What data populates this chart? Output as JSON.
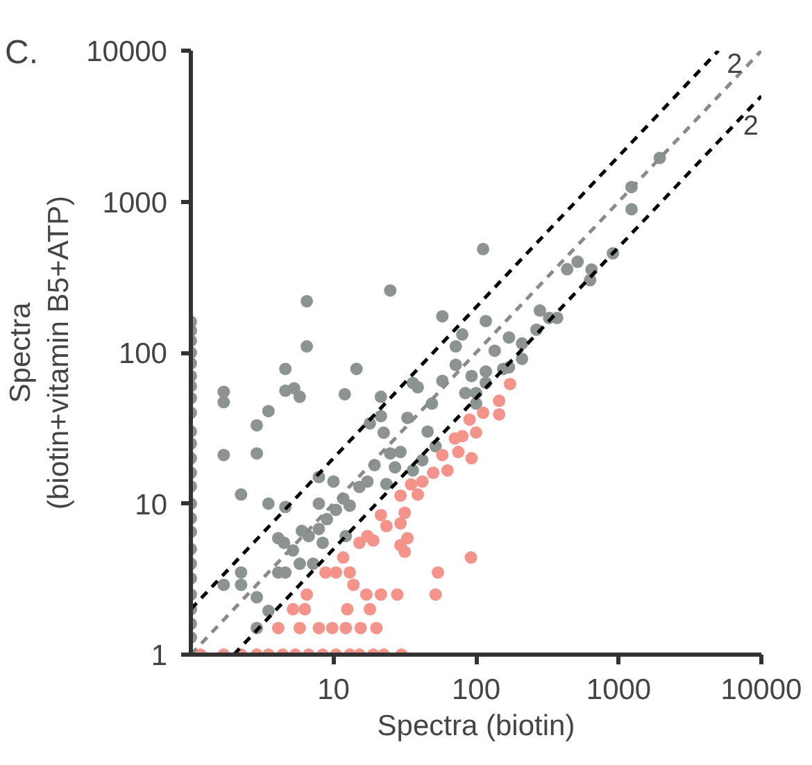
{
  "chart_data": {
    "type": "scatter",
    "title": "C.",
    "xlabel": "Spectra (biotin)",
    "ylabel": "Spectra\n(biotin+vitamin B5+ATP)",
    "log": "xy",
    "grid": false,
    "xlim": [
      1,
      10000
    ],
    "ylim": [
      1,
      10000
    ],
    "xticks": [
      10,
      100,
      1000,
      10000
    ],
    "yticks": [
      1,
      10,
      100,
      1000,
      10000
    ],
    "annotations": [
      "2",
      "2"
    ],
    "series": [
      {
        "marker": "circle",
        "color": "#8c9491",
        "x": [
          112,
          25,
          6.5,
          6.5,
          58,
          117,
          4.6,
          4.6,
          5.3,
          5.8,
          14.5,
          12,
          1.7,
          1.7,
          3.5,
          2.9,
          1.7,
          2.9,
          2.25,
          3.5,
          4.6,
          7.9,
          7.9,
          10,
          4.1,
          4.5,
          5.2,
          6,
          6.7,
          7.9,
          9,
          10.4,
          11.7,
          13,
          12.2,
          8.4,
          4.1,
          4.6,
          5.8,
          7.2,
          2.25,
          2.25,
          1.7,
          2.9,
          3.5,
          2.9,
          17.3,
          15.2,
          21.5,
          21.5,
          18,
          22.5,
          19.4,
          25,
          29.5,
          27,
          33,
          36,
          39,
          45.7,
          49,
          58,
          72,
          72,
          80,
          93,
          117,
          117,
          100,
          84,
          100,
          36,
          42,
          52,
          135,
          210,
          155,
          170,
          23.5,
          1940,
          1230,
          1230,
          910,
          645,
          630,
          515,
          435,
          325,
          370,
          280,
          265,
          210,
          170,
          1,
          1,
          1,
          1,
          1,
          1,
          1,
          1,
          1,
          1,
          1,
          1,
          1,
          1,
          1,
          1,
          1,
          1,
          1,
          1,
          1,
          1,
          1,
          1
        ],
        "values": [
          485,
          258,
          219,
          110,
          174,
          162,
          78,
          56,
          58,
          51,
          78,
          53,
          55,
          47,
          41,
          33,
          21,
          21.5,
          11.5,
          10,
          9.5,
          15,
          10,
          14,
          5.9,
          5.5,
          4.9,
          6.6,
          6.1,
          6.8,
          7.9,
          9.1,
          10.8,
          9.7,
          6.1,
          5.5,
          3.5,
          3.5,
          4,
          4,
          3.5,
          2.9,
          2.9,
          2.4,
          1.95,
          1.5,
          14,
          12.9,
          51,
          38,
          34,
          29.5,
          18,
          21.5,
          22,
          17.4,
          37,
          63,
          59,
          30,
          46,
          65,
          83,
          110,
          132,
          70,
          75,
          63,
          54,
          54,
          46,
          16.6,
          19.4,
          24,
          103,
          115,
          78,
          126,
          13.5,
          1950,
          1250,
          890,
          455,
          355,
          302,
          400,
          357,
          170,
          170,
          190,
          142,
          91,
          80,
          160,
          140,
          120,
          100,
          85,
          70,
          60,
          50,
          40,
          30,
          25,
          20,
          16,
          13,
          10,
          8,
          6.5,
          5,
          4,
          3.2,
          2.5,
          2,
          1.6,
          1.3
        ]
      },
      {
        "marker": "circle",
        "color": "#f4938a",
        "x": [
          173,
          145,
          145,
          112,
          90,
          100,
          80,
          71,
          75,
          58,
          93,
          63,
          50,
          42,
          35,
          39,
          29.5,
          31.6,
          29.5,
          21.5,
          23.5,
          17.3,
          15.2,
          19,
          33,
          31.6,
          29.5,
          11.7,
          10.4,
          8.8,
          13,
          13.8,
          54,
          52,
          92,
          6.5,
          17,
          21.5,
          28,
          5.2,
          6.3,
          12.5,
          18,
          4.1,
          5.8,
          7.9,
          9.8,
          12.2,
          15.5,
          20,
          1.17,
          1.7,
          2.25,
          2.9,
          3.5,
          4.4,
          5.4,
          6.7,
          8.4,
          10.4,
          13,
          15.2,
          19,
          22.5,
          30
        ],
        "values": [
          62,
          48,
          39,
          40,
          36,
          29.6,
          28,
          27,
          22,
          21,
          20,
          16.6,
          16,
          14,
          13.4,
          11.5,
          11.3,
          8.7,
          7.4,
          8.4,
          7.1,
          6.1,
          5.5,
          5.7,
          5.9,
          4.8,
          5.3,
          4.4,
          3.5,
          3.5,
          3.5,
          2.9,
          3.5,
          2.5,
          4.4,
          2.5,
          2.5,
          2.5,
          2.5,
          2,
          2,
          2,
          2,
          1.5,
          1.5,
          1.5,
          1.5,
          1.5,
          1.5,
          1.5,
          1,
          1,
          1,
          1,
          1,
          1,
          1,
          1,
          1,
          1,
          1,
          1,
          1,
          1,
          1
        ]
      },
      {
        "type": "line",
        "color": "#000000",
        "line_style": "dashed",
        "x": [
          1,
          5000
        ],
        "values": [
          2,
          10000
        ]
      },
      {
        "type": "line",
        "color": "#8a8a8a",
        "line_style": "dashed",
        "x": [
          1,
          10000
        ],
        "values": [
          1,
          10000
        ]
      },
      {
        "type": "line",
        "color": "#000000",
        "line_style": "dashed",
        "x": [
          2,
          10000
        ],
        "values": [
          1,
          5000
        ]
      }
    ]
  }
}
